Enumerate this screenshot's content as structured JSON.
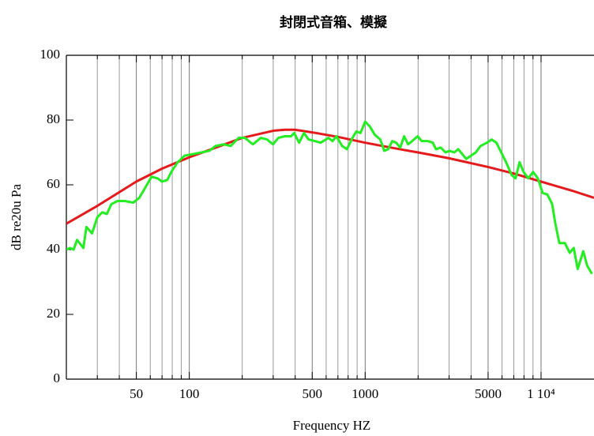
{
  "chart_data": {
    "type": "line",
    "title": "封閉式音箱、模擬",
    "x_label": "Frequency  HZ",
    "y_label": "dB re20u Pa",
    "xscale": "log",
    "xlim": [
      20,
      20000
    ],
    "ylim": [
      0,
      100
    ],
    "xticks": [
      50,
      100,
      500,
      1000,
      5000,
      {
        "value": 10000,
        "label": "1 10⁴"
      }
    ],
    "xminor": [
      30,
      40,
      60,
      70,
      80,
      90,
      200,
      300,
      400,
      600,
      700,
      800,
      900,
      2000,
      3000,
      4000,
      6000,
      7000,
      8000,
      9000
    ],
    "yticks": [
      0,
      20,
      40,
      60,
      80,
      100
    ],
    "grid": "x",
    "series": [
      {
        "color": "#e41a1c",
        "x": [
          20,
          30,
          50,
          70,
          100,
          150,
          200,
          300,
          350,
          400,
          500,
          700,
          1000,
          1500,
          2000,
          3000,
          5000,
          7000,
          10000,
          15000,
          20000
        ],
        "values": [
          48,
          53.5,
          61,
          65,
          68.5,
          72,
          74.5,
          76.7,
          77,
          77,
          76.2,
          74.8,
          73,
          71.2,
          70,
          68.2,
          65.5,
          63.5,
          61,
          58.2,
          56
        ]
      },
      {
        "color": "#22ee22",
        "x": [
          20,
          21,
          22,
          23,
          25,
          26,
          28,
          30,
          32,
          34,
          36,
          39,
          43,
          48,
          52,
          56,
          61,
          66,
          70,
          75,
          79,
          86,
          94,
          105,
          117,
          130,
          141,
          157,
          172,
          191,
          207,
          230,
          255,
          277,
          299,
          321,
          349,
          379,
          395,
          421,
          449,
          477,
          519,
          558,
          619,
          652,
          687,
          739,
          787,
          847,
          891,
          940,
          1000,
          1064,
          1133,
          1219,
          1284,
          1353,
          1425,
          1501,
          1582,
          1666,
          1755,
          1849,
          1989,
          2096,
          2277,
          2424,
          2527,
          2690,
          2864,
          3017,
          3212,
          3383,
          3564,
          3755,
          3996,
          4254,
          4529,
          4924,
          5241,
          5580,
          5940,
          6323,
          6805,
          7166,
          7547,
          7948,
          8462,
          9010,
          9592,
          10211,
          10870,
          11573,
          12060,
          12706,
          13672,
          14555,
          15339,
          16155,
          17374,
          18299,
          19479
        ],
        "values": [
          40,
          40.5,
          40,
          43,
          40.5,
          47,
          45,
          50,
          51.5,
          51,
          54,
          55,
          55,
          54.5,
          56,
          59,
          62.5,
          62,
          61,
          61.5,
          64,
          67,
          69,
          69.5,
          70,
          70.5,
          72,
          72.5,
          72,
          74.5,
          74.5,
          72.5,
          74.5,
          74,
          72.5,
          74.5,
          75,
          75,
          76,
          73,
          76,
          74,
          73.5,
          73,
          74.5,
          73.5,
          75,
          72,
          71,
          74.5,
          76.5,
          76,
          79.5,
          78,
          75.5,
          74,
          70.5,
          71,
          73.5,
          73,
          71.5,
          75,
          72.5,
          73.5,
          75,
          73.5,
          73.5,
          73,
          71,
          71.5,
          70,
          70.5,
          70,
          71,
          69.5,
          68,
          69,
          70,
          72,
          73,
          74,
          73,
          70,
          67,
          63,
          62,
          67,
          64,
          62,
          64,
          62,
          57.5,
          57,
          54,
          48,
          42,
          42,
          39,
          40.5,
          34,
          39.5,
          35,
          32.5
        ]
      }
    ]
  }
}
